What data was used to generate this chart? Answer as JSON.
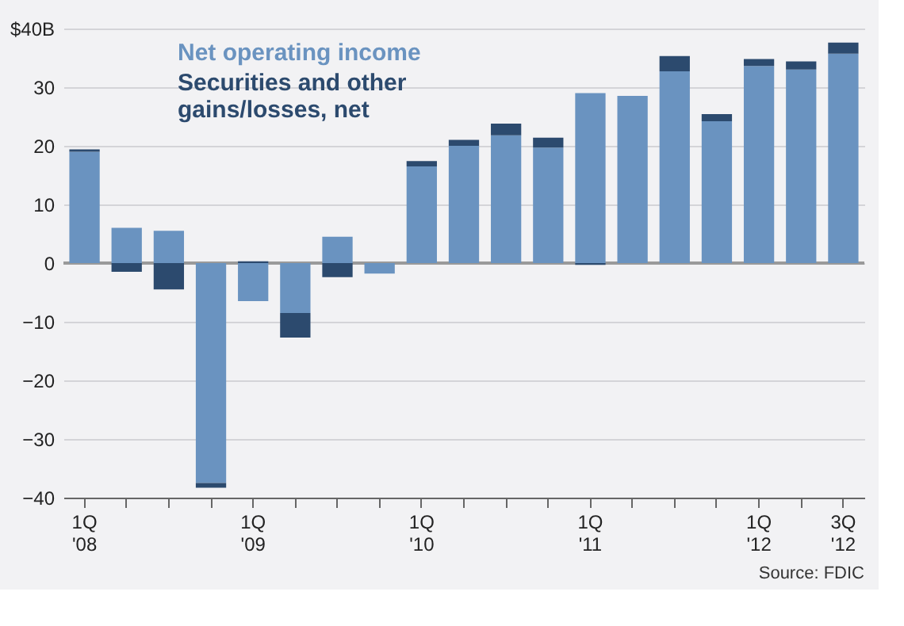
{
  "chart_data": {
    "type": "bar",
    "stacked": true,
    "categories": [
      "1Q\n'08",
      null,
      null,
      null,
      "1Q\n'09",
      null,
      null,
      null,
      "1Q\n'10",
      null,
      null,
      null,
      "1Q\n'11",
      null,
      null,
      null,
      "1Q\n'12",
      null,
      "3Q\n'12"
    ],
    "series": [
      {
        "name": "Net operating income",
        "color": "#6a93c0",
        "values": [
          19,
          6,
          5.5,
          -37.5,
          -6.5,
          -8.5,
          4.5,
          -1.8,
          16.5,
          20,
          21.8,
          19.7,
          29,
          28.5,
          32.7,
          24.2,
          33.6,
          33,
          35.7
        ]
      },
      {
        "name": "Securities and other\ngains/losses, net",
        "color": "#2c4a6e",
        "values": [
          0.4,
          -1.5,
          -4.5,
          -0.8,
          0.3,
          -4.2,
          -2.4,
          0,
          0.9,
          1,
          2,
          1.7,
          -0.3,
          0,
          2.6,
          1.2,
          1.2,
          1.4,
          1.9
        ]
      }
    ],
    "ylim": [
      -40,
      40
    ],
    "yticks": [
      -40,
      -30,
      -20,
      -10,
      0,
      10,
      20,
      30,
      {
        "value": 40,
        "label": "$40B"
      }
    ],
    "ref_lines": [
      {
        "axis": "y",
        "value": 0,
        "color": "#9a9a9a"
      }
    ],
    "grid": "y",
    "legend": "top left",
    "annotations": [
      "Source: FDIC"
    ]
  }
}
